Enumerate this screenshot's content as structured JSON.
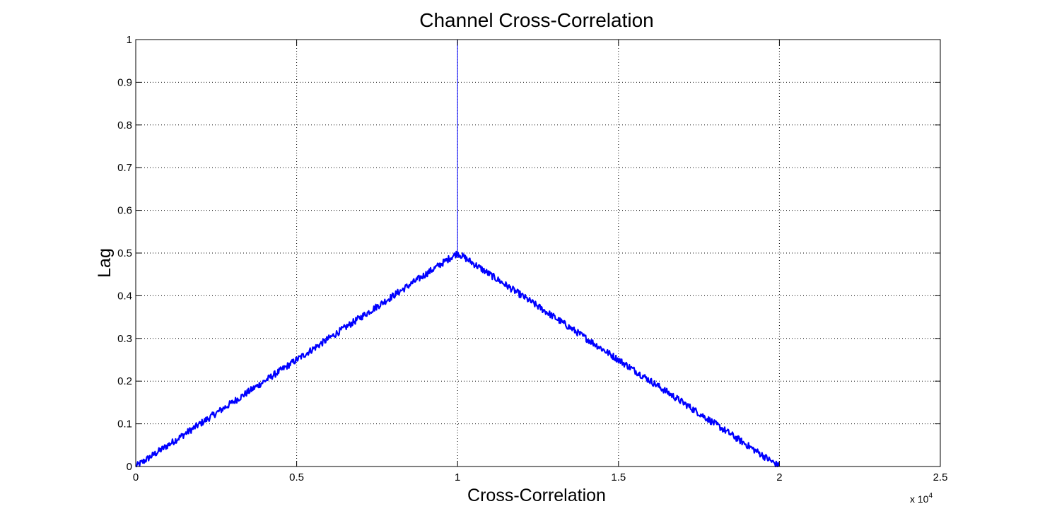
{
  "chart_data": {
    "type": "line",
    "title": "Channel Cross-Correlation",
    "xlabel": "Cross-Correlation",
    "ylabel": "Lag",
    "x_exponent_label": "x 10",
    "x_exponent_power": "4",
    "xlim": [
      0,
      25000
    ],
    "ylim": [
      0,
      1
    ],
    "xticks": [
      0,
      5000,
      10000,
      15000,
      20000,
      25000
    ],
    "xtick_labels": [
      "0",
      "0.5",
      "1",
      "1.5",
      "2",
      "2.5"
    ],
    "yticks": [
      0,
      0.1,
      0.2,
      0.3,
      0.4,
      0.5,
      0.6,
      0.7,
      0.8,
      0.9,
      1
    ],
    "ytick_labels": [
      "0",
      "0.1",
      "0.2",
      "0.3",
      "0.4",
      "0.5",
      "0.6",
      "0.7",
      "0.8",
      "0.9",
      "1"
    ],
    "grid": true,
    "series": [
      {
        "color": "#0000ff",
        "x": [
          0,
          2000,
          4000,
          6000,
          8000,
          9998,
          10000,
          10002,
          12000,
          14000,
          16000,
          18000,
          20000
        ],
        "y": [
          0,
          0.1,
          0.2,
          0.3,
          0.4,
          0.5,
          1.0,
          0.5,
          0.4,
          0.3,
          0.2,
          0.1,
          0
        ],
        "noise_amplitude": 0.008
      }
    ]
  }
}
